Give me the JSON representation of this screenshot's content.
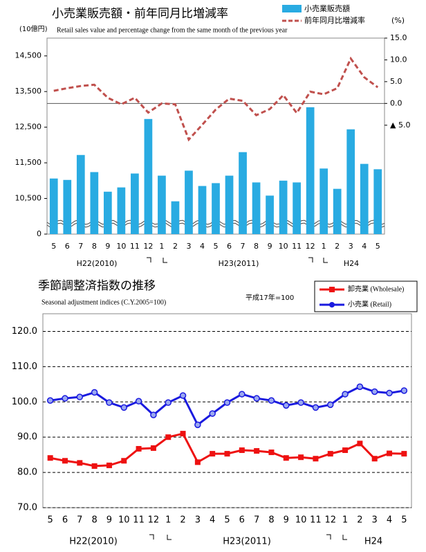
{
  "chart_data": [
    {
      "type": "bar",
      "title": "小売業販売額・前年同月比増減率",
      "subtitle": "Retail sales value and percentage change from the same month of the previous year",
      "y_label": "(10億円)",
      "y2_label": "(%)",
      "categories": [
        "5",
        "6",
        "7",
        "8",
        "9",
        "10",
        "11",
        "12",
        "1",
        "2",
        "3",
        "4",
        "5",
        "6",
        "7",
        "8",
        "9",
        "10",
        "11",
        "12",
        "1",
        "2",
        "3",
        "4",
        "5"
      ],
      "x_groups": [
        "H22(2010)",
        "H23(2011)",
        "H24"
      ],
      "series": [
        {
          "name": "小売業販売額",
          "type": "bar",
          "color": "#29abe2",
          "values": [
            11060,
            11020,
            11720,
            11240,
            10690,
            10810,
            11200,
            12730,
            11140,
            10420,
            11280,
            10850,
            10930,
            11140,
            11800,
            10950,
            10580,
            11000,
            10950,
            13060,
            11340,
            10770,
            12440,
            11470,
            11320
          ]
        },
        {
          "name": "前年同月比増減率",
          "type": "line",
          "axis": "y2",
          "color": "#c0504d",
          "line_style": "dashed",
          "values": [
            2.9,
            3.5,
            4.0,
            4.3,
            1.3,
            -0.2,
            1.3,
            -2.1,
            0.0,
            -0.2,
            -8.3,
            -4.9,
            -1.4,
            1.1,
            0.6,
            -2.7,
            -1.3,
            1.9,
            -2.2,
            2.7,
            2.1,
            3.5,
            10.3,
            6.0,
            3.7
          ]
        }
      ],
      "ylim": [
        9500,
        15000
      ],
      "yticks": [
        0,
        {
          "value": 10500,
          "label": "10,500"
        },
        {
          "value": 11500,
          "label": "11,500"
        },
        {
          "value": 12500,
          "label": "12,500"
        },
        {
          "value": 13500,
          "label": "13,500"
        },
        {
          "value": 14500,
          "label": "14,500"
        }
      ],
      "y2lim": [
        -30,
        15
      ],
      "y2ticks": [
        {
          "value": -5,
          "label": "▲ 5.0"
        },
        {
          "value": 0,
          "label": "0.0"
        },
        {
          "value": 5,
          "label": "5.0"
        },
        {
          "value": 10,
          "label": "10.0"
        },
        {
          "value": 15,
          "label": "15.0"
        }
      ],
      "y2_refline": 0,
      "grid": false
    },
    {
      "type": "line",
      "title": "季節調整済指数の推移",
      "subtitle": "Seasonal adjustment indices (C.Y.2005=100)",
      "note": "平成17年=100",
      "categories": [
        "5",
        "6",
        "7",
        "8",
        "9",
        "10",
        "11",
        "12",
        "1",
        "2",
        "3",
        "4",
        "5",
        "6",
        "7",
        "8",
        "9",
        "10",
        "11",
        "12",
        "1",
        "2",
        "3",
        "4",
        "5"
      ],
      "x_groups": [
        "H22(2010)",
        "H23(2011)",
        "H24"
      ],
      "series": [
        {
          "name": "卸売業 (Wholesale)",
          "color": "#ee1111",
          "marker": "square",
          "values": [
            84.1,
            83.3,
            82.7,
            81.8,
            82.0,
            83.3,
            86.7,
            86.9,
            90.0,
            91.0,
            82.9,
            85.3,
            85.3,
            86.3,
            86.1,
            85.7,
            84.1,
            84.3,
            83.9,
            85.3,
            86.3,
            88.2,
            83.9,
            85.4,
            85.3
          ]
        },
        {
          "name": "小売業 (Retail)",
          "color": "#1a1adf",
          "marker": "circle",
          "values": [
            100.4,
            101.0,
            101.4,
            102.7,
            99.8,
            98.4,
            100.2,
            96.3,
            99.8,
            101.8,
            93.5,
            96.7,
            99.8,
            102.2,
            101.0,
            100.4,
            99.0,
            99.8,
            98.4,
            99.2,
            102.2,
            104.3,
            102.9,
            102.5,
            103.2
          ]
        }
      ],
      "ylim": [
        70,
        125
      ],
      "yticks": [
        {
          "value": 70,
          "label": "70.0"
        },
        {
          "value": 80,
          "label": "80.0"
        },
        {
          "value": 90,
          "label": "90.0"
        },
        {
          "value": 100,
          "label": "100.0"
        },
        {
          "value": 110,
          "label": "110.0"
        },
        {
          "value": 120,
          "label": "120.0"
        }
      ],
      "grid": true
    }
  ]
}
